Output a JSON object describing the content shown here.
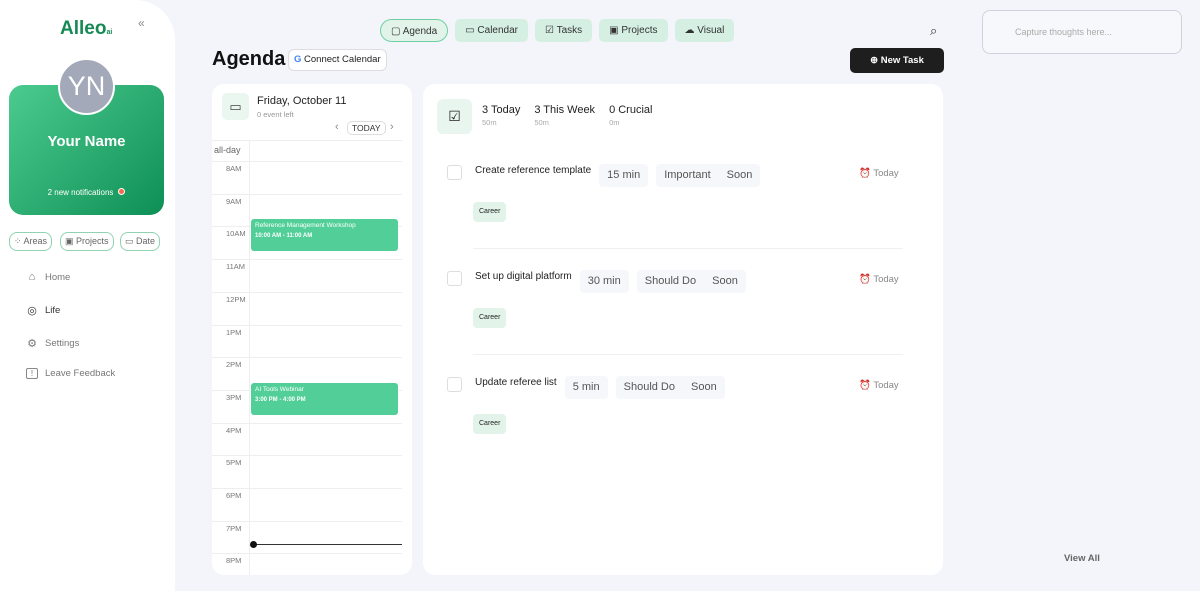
{
  "sidebar": {
    "logo": "Alleo",
    "logo_suffix": "ai",
    "collapse": "«",
    "avatar_initials": "YN",
    "name": "Your Name",
    "notifications": "2 new notifications",
    "filters": [
      {
        "label": "Areas"
      },
      {
        "label": "Projects"
      },
      {
        "label": "Date"
      }
    ],
    "nav": [
      {
        "label": "Home",
        "icon": "⌂"
      },
      {
        "label": "Life",
        "icon": "◎"
      },
      {
        "label": "Settings",
        "icon": "⚙"
      },
      {
        "label": "Leave Feedback",
        "icon": "!"
      }
    ]
  },
  "tabs": [
    {
      "label": "Agenda",
      "icon": "▢"
    },
    {
      "label": "Calendar",
      "icon": "▭"
    },
    {
      "label": "Tasks",
      "icon": "☑"
    },
    {
      "label": "Projects",
      "icon": "▣"
    },
    {
      "label": "Visual",
      "icon": "☁"
    }
  ],
  "capture_placeholder": "Capture thoughts here...",
  "page_title": "Agenda",
  "connect_calendar": "Connect Calendar",
  "google_g": "G",
  "new_task": "New Task",
  "calendar": {
    "date": "Friday, October 11",
    "events_left": "0 event left",
    "today": "TODAY",
    "all_day": "all-day",
    "hours": [
      "8AM",
      "9AM",
      "10AM",
      "11AM",
      "12PM",
      "1PM",
      "2PM",
      "3PM",
      "4PM",
      "5PM",
      "6PM",
      "7PM",
      "8PM"
    ],
    "events": [
      {
        "title": "Reference Management Workshop",
        "time": "10:00 AM - 11:00 AM",
        "start_hour": 10
      },
      {
        "title": "AI Tools Webinar",
        "time": "3:00 PM - 4:00 PM",
        "start_hour": 15
      }
    ]
  },
  "stats": [
    {
      "label": "3 Today",
      "sub": "50m"
    },
    {
      "label": "3 This Week",
      "sub": "50m"
    },
    {
      "label": "0 Crucial",
      "sub": "0m"
    }
  ],
  "tasks": [
    {
      "name": "Create reference template",
      "duration": "15 min",
      "priority": "Important",
      "when": "Soon",
      "due": "Today",
      "tag": "Career"
    },
    {
      "name": "Set up digital platform",
      "duration": "30 min",
      "priority": "Should Do",
      "when": "Soon",
      "due": "Today",
      "tag": "Career"
    },
    {
      "name": "Update referee list",
      "duration": "5 min",
      "priority": "Should Do",
      "when": "Soon",
      "due": "Today",
      "tag": "Career"
    }
  ],
  "view_all": "View All",
  "colors": {
    "brand": "#158a55",
    "event": "#52cf98",
    "accent_tab": "#d6efe3"
  }
}
